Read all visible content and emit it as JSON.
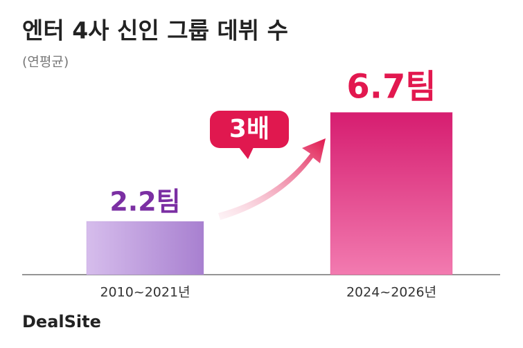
{
  "chart_data": {
    "type": "bar",
    "title": "엔터 4사 신인 그룹 데뷔 수",
    "subtitle": "(연평균)",
    "categories": [
      "2010~2021년",
      "2024~2026년"
    ],
    "values": [
      2.2,
      6.7
    ],
    "value_labels": [
      "2.2팀",
      "6.7팀"
    ],
    "colors": [
      "#b48bd8",
      "#e2357f"
    ],
    "annotation": "3배",
    "source": "DealSite"
  }
}
